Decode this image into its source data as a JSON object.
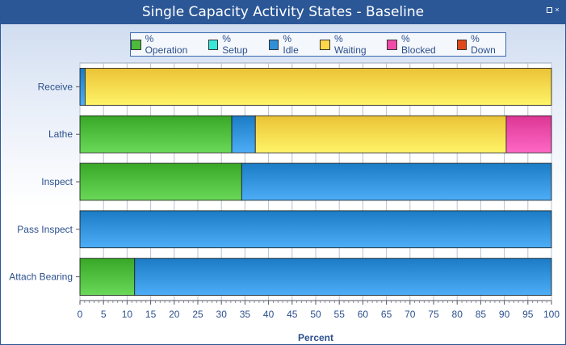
{
  "window": {
    "title": "Single Capacity Activity States - Baseline",
    "close_glyph": "×"
  },
  "legend": [
    {
      "label": "% Operation",
      "color": "#4cba3a"
    },
    {
      "label": "% Setup",
      "color": "#35e8d8"
    },
    {
      "label": "% Idle",
      "color": "#2f8fd8"
    },
    {
      "label": "% Waiting",
      "color": "#ffd64a"
    },
    {
      "label": "% Blocked",
      "color": "#f04aa8"
    },
    {
      "label": "% Down",
      "color": "#e04a1a"
    }
  ],
  "chart_data": {
    "type": "bar",
    "orientation": "horizontal",
    "stacked": true,
    "title": "Single Capacity Activity States - Baseline",
    "xlabel": "Percent",
    "ylabel": "",
    "xlim": [
      0,
      100
    ],
    "x_ticks": [
      0,
      5,
      10,
      15,
      20,
      25,
      30,
      35,
      40,
      45,
      50,
      55,
      60,
      65,
      70,
      75,
      80,
      85,
      90,
      95,
      100
    ],
    "categories": [
      "Receive",
      "Lathe",
      "Inspect",
      "Pass Inspect",
      "Attach Bearing"
    ],
    "series": [
      {
        "name": "% Operation",
        "values": [
          0,
          32.2,
          34.3,
          0,
          11.6
        ]
      },
      {
        "name": "% Setup",
        "values": [
          0,
          0,
          0,
          0,
          0
        ]
      },
      {
        "name": "% Idle",
        "values": [
          1.1,
          5.0,
          65.7,
          100,
          88.4
        ]
      },
      {
        "name": "% Waiting",
        "values": [
          98.9,
          53.2,
          0,
          0,
          0
        ]
      },
      {
        "name": "% Blocked",
        "values": [
          0,
          9.6,
          0,
          0,
          0
        ]
      },
      {
        "name": "% Down",
        "values": [
          0,
          0,
          0,
          0,
          0
        ]
      }
    ],
    "grid": true,
    "legend_position": "top"
  }
}
